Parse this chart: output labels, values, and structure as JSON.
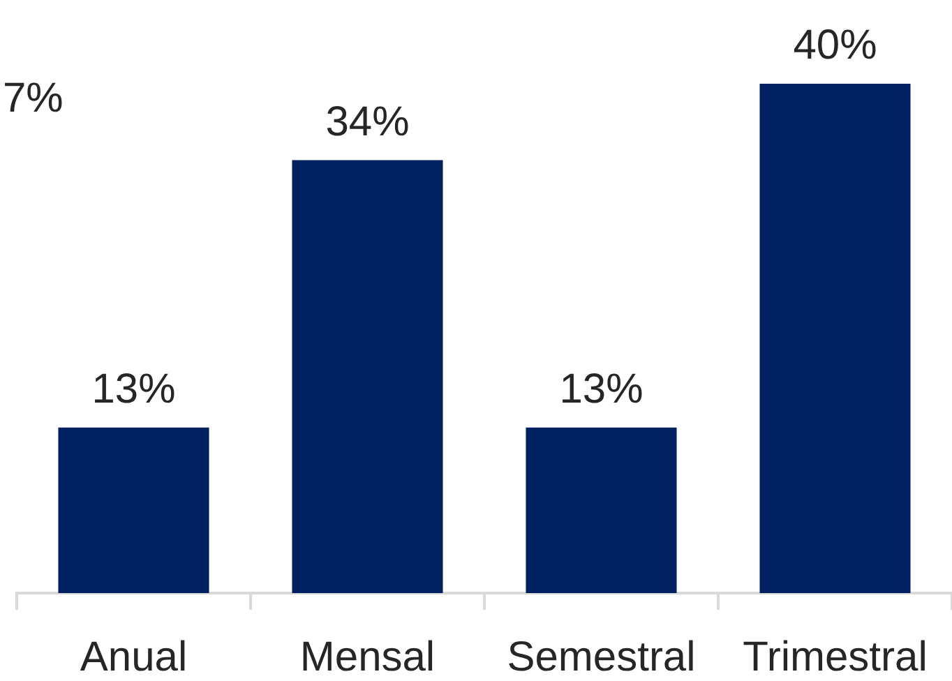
{
  "chart_data": {
    "type": "bar",
    "categories": [
      "Anual",
      "Mensal",
      "Semestral",
      "Trimestral"
    ],
    "values": [
      13,
      34,
      13,
      40
    ],
    "color": "#002060",
    "value_labels": [
      "13%",
      "34%",
      "13%",
      "40%"
    ],
    "annotations": [
      "7%"
    ]
  }
}
